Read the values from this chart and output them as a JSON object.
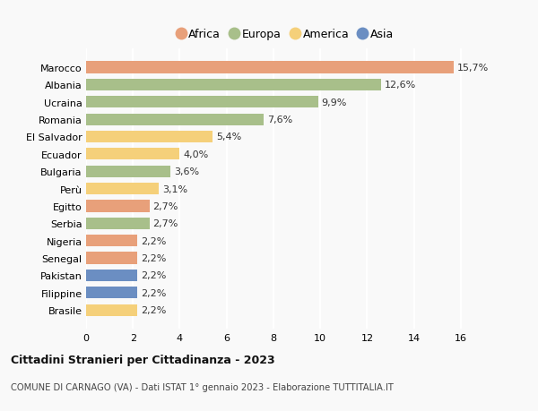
{
  "categories": [
    "Brasile",
    "Filippine",
    "Pakistan",
    "Senegal",
    "Nigeria",
    "Serbia",
    "Egitto",
    "Perù",
    "Bulgaria",
    "Ecuador",
    "El Salvador",
    "Romania",
    "Ucraina",
    "Albania",
    "Marocco"
  ],
  "values": [
    2.2,
    2.2,
    2.2,
    2.2,
    2.2,
    2.7,
    2.7,
    3.1,
    3.6,
    4.0,
    5.4,
    7.6,
    9.9,
    12.6,
    15.7
  ],
  "colors": [
    "#f5d07a",
    "#6b8ec2",
    "#6b8ec2",
    "#e8a07a",
    "#e8a07a",
    "#a8bf8a",
    "#e8a07a",
    "#f5d07a",
    "#a8bf8a",
    "#f5d07a",
    "#f5d07a",
    "#a8bf8a",
    "#a8bf8a",
    "#a8bf8a",
    "#e8a07a"
  ],
  "labels": [
    "2,2%",
    "2,2%",
    "2,2%",
    "2,2%",
    "2,2%",
    "2,7%",
    "2,7%",
    "3,1%",
    "3,6%",
    "4,0%",
    "5,4%",
    "7,6%",
    "9,9%",
    "12,6%",
    "15,7%"
  ],
  "legend_labels": [
    "Africa",
    "Europa",
    "America",
    "Asia"
  ],
  "legend_colors": [
    "#e8a07a",
    "#a8bf8a",
    "#f5d07a",
    "#6b8ec2"
  ],
  "title": "Cittadini Stranieri per Cittadinanza - 2023",
  "subtitle": "COMUNE DI CARNAGO (VA) - Dati ISTAT 1° gennaio 2023 - Elaborazione TUTTITALIA.IT",
  "xlim": [
    0,
    17
  ],
  "xticks": [
    0,
    2,
    4,
    6,
    8,
    10,
    12,
    14,
    16
  ],
  "background_color": "#f9f9f9",
  "grid_color": "#ffffff"
}
